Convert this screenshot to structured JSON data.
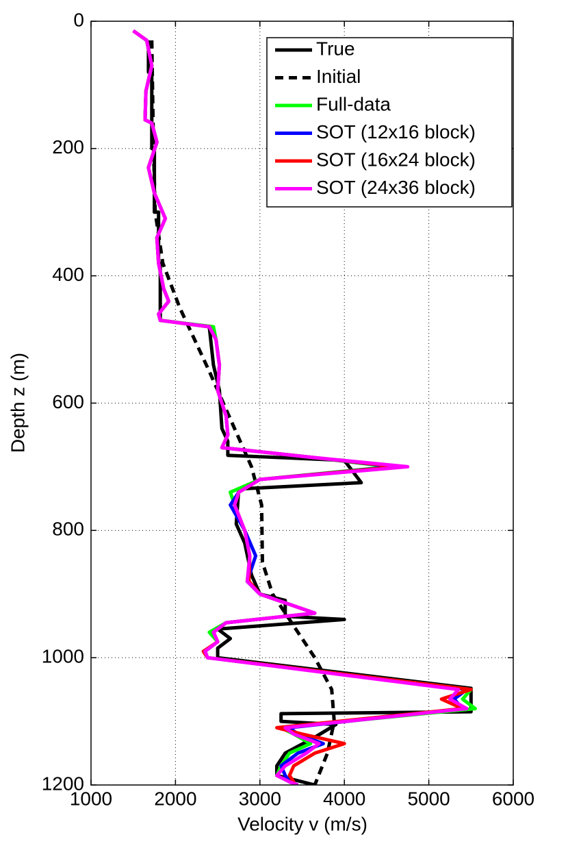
{
  "chart_data": {
    "type": "line",
    "xlabel": "Velocity v (m/s)",
    "ylabel": "Depth z (m)",
    "xlim": [
      1000,
      6000
    ],
    "xticks": [
      1000,
      2000,
      3000,
      4000,
      5000,
      6000
    ],
    "ylim": [
      0,
      1200
    ],
    "yticks": [
      0,
      200,
      400,
      600,
      800,
      1000,
      1200
    ],
    "y_inverted": true,
    "grid": true,
    "legend": "upper right",
    "series": [
      {
        "name": "True",
        "color": "#000000",
        "dashed": false,
        "x": [
          1680,
          1680,
          1720,
          1720,
          1750,
          1750,
          1800,
          1800,
          1820,
          1820,
          2400,
          2450,
          2520,
          2550,
          2620,
          2620,
          4000,
          4200,
          2750,
          2720,
          2820,
          2900,
          3000,
          3300,
          3300,
          4000,
          2500,
          2650,
          2500,
          2500,
          5500,
          5500,
          3250,
          3250,
          3900,
          3650,
          3300,
          3200,
          3200,
          3650
        ],
        "y": [
          30,
          80,
          80,
          200,
          200,
          300,
          300,
          380,
          380,
          470,
          480,
          540,
          580,
          640,
          660,
          682,
          690,
          725,
          735,
          790,
          820,
          870,
          900,
          910,
          935,
          940,
          955,
          970,
          985,
          1000,
          1048,
          1085,
          1088,
          1100,
          1105,
          1125,
          1150,
          1170,
          1185,
          1200
        ]
      },
      {
        "name": "Initial",
        "color": "#000000",
        "dashed": true,
        "x": [
          1720,
          1740,
          1760,
          1850,
          2050,
          2400,
          2700,
          2900,
          3020,
          3030,
          3150,
          3350,
          3650,
          3850,
          3880,
          3800,
          3650
        ],
        "y": [
          30,
          200,
          300,
          380,
          450,
          550,
          640,
          700,
          760,
          850,
          900,
          940,
          1000,
          1050,
          1100,
          1150,
          1200
        ]
      },
      {
        "name": "Full-data",
        "color": "#00ff00",
        "dashed": false,
        "x": [
          1500,
          1660,
          1720,
          1650,
          1640,
          1720,
          1780,
          1680,
          1750,
          1880,
          1780,
          1800,
          1860,
          1920,
          1800,
          1820,
          2450,
          2480,
          2520,
          2500,
          2600,
          2620,
          2550,
          3600,
          4550,
          3000,
          2650,
          2700,
          2820,
          2880,
          2850,
          3000,
          3650,
          2600,
          2400,
          2500,
          2350,
          2380,
          5500,
          5400,
          5550,
          3250,
          3400,
          3600,
          3350,
          3250,
          3200,
          3350,
          3450
        ],
        "y": [
          15,
          30,
          70,
          110,
          155,
          160,
          190,
          230,
          270,
          310,
          340,
          380,
          420,
          440,
          460,
          470,
          480,
          500,
          540,
          580,
          620,
          650,
          670,
          685,
          700,
          720,
          740,
          760,
          800,
          840,
          880,
          900,
          930,
          945,
          960,
          975,
          990,
          1000,
          1050,
          1065,
          1080,
          1110,
          1120,
          1135,
          1150,
          1170,
          1185,
          1195,
          1200
        ]
      },
      {
        "name": "SOT (12x16 block)",
        "color": "#0000ff",
        "dashed": false,
        "x": [
          1500,
          1660,
          1720,
          1650,
          1640,
          1720,
          1780,
          1680,
          1750,
          1880,
          1780,
          1800,
          1860,
          1920,
          1800,
          1820,
          2400,
          2480,
          2520,
          2500,
          2600,
          2620,
          2550,
          3600,
          4600,
          3000,
          2750,
          2650,
          2820,
          2950,
          2850,
          3000,
          3650,
          2600,
          2450,
          2500,
          2350,
          2380,
          5450,
          5300,
          5400,
          3350,
          3450,
          3750,
          3450,
          3250,
          3300,
          3350,
          3450
        ],
        "y": [
          15,
          30,
          70,
          110,
          155,
          160,
          190,
          230,
          270,
          310,
          340,
          380,
          420,
          440,
          460,
          470,
          480,
          500,
          540,
          580,
          620,
          650,
          670,
          685,
          700,
          720,
          740,
          760,
          800,
          840,
          880,
          900,
          930,
          945,
          960,
          975,
          990,
          1000,
          1050,
          1065,
          1080,
          1110,
          1120,
          1135,
          1150,
          1170,
          1185,
          1195,
          1200
        ]
      },
      {
        "name": "SOT (16x24 block)",
        "color": "#ff0000",
        "dashed": false,
        "x": [
          1500,
          1660,
          1720,
          1650,
          1640,
          1720,
          1780,
          1680,
          1750,
          1880,
          1780,
          1800,
          1860,
          1920,
          1800,
          1820,
          2400,
          2480,
          2520,
          2500,
          2600,
          2620,
          2550,
          3600,
          4650,
          3000,
          2750,
          2700,
          2820,
          2880,
          2870,
          3000,
          3650,
          2600,
          2450,
          2500,
          2330,
          2380,
          5500,
          5150,
          5400,
          3200,
          3500,
          4000,
          3650,
          3400,
          3350,
          3400,
          3400
        ],
        "y": [
          15,
          30,
          70,
          110,
          155,
          160,
          190,
          230,
          270,
          310,
          340,
          380,
          420,
          440,
          460,
          470,
          480,
          500,
          540,
          580,
          620,
          650,
          670,
          685,
          700,
          720,
          740,
          760,
          800,
          840,
          880,
          900,
          930,
          945,
          960,
          975,
          990,
          1000,
          1050,
          1065,
          1080,
          1110,
          1120,
          1135,
          1150,
          1170,
          1185,
          1195,
          1200
        ]
      },
      {
        "name": "SOT (24x36 block)",
        "color": "#ff00ff",
        "dashed": false,
        "x": [
          1500,
          1660,
          1720,
          1650,
          1640,
          1720,
          1780,
          1680,
          1750,
          1880,
          1780,
          1800,
          1860,
          1920,
          1800,
          1820,
          2400,
          2480,
          2520,
          2500,
          2600,
          2620,
          2550,
          3600,
          4750,
          3000,
          2750,
          2700,
          2820,
          2880,
          2850,
          3000,
          3650,
          2600,
          2450,
          2500,
          2350,
          2380,
          5350,
          5250,
          5450,
          3300,
          3400,
          3700,
          3550,
          3300,
          3200,
          3350,
          3450
        ],
        "y": [
          15,
          30,
          70,
          110,
          155,
          160,
          190,
          230,
          270,
          310,
          340,
          380,
          420,
          440,
          460,
          470,
          480,
          500,
          540,
          580,
          620,
          650,
          670,
          685,
          700,
          720,
          740,
          760,
          800,
          840,
          880,
          900,
          930,
          945,
          960,
          975,
          990,
          1000,
          1050,
          1065,
          1080,
          1110,
          1120,
          1135,
          1150,
          1170,
          1185,
          1195,
          1200
        ]
      }
    ]
  }
}
